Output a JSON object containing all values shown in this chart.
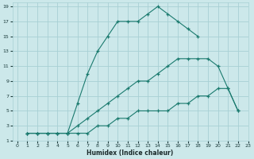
{
  "xlabel": "Humidex (Indice chaleur)",
  "bg_color": "#cce8ea",
  "grid_color": "#a8d0d4",
  "line_color": "#1a7a6e",
  "xlim": [
    -0.5,
    23
  ],
  "ylim": [
    1,
    19.5
  ],
  "xticks": [
    0,
    1,
    2,
    3,
    4,
    5,
    6,
    7,
    8,
    9,
    10,
    11,
    12,
    13,
    14,
    15,
    16,
    17,
    18,
    19,
    20,
    21,
    22,
    23
  ],
  "yticks": [
    1,
    3,
    5,
    7,
    9,
    11,
    13,
    15,
    17,
    19
  ],
  "series": [
    {
      "x": [
        1,
        2,
        3,
        4,
        5,
        6,
        7,
        8,
        9,
        10,
        11,
        12,
        13,
        14,
        15,
        16,
        17,
        18
      ],
      "y": [
        2,
        2,
        2,
        2,
        2,
        6,
        10,
        13,
        15,
        17,
        17,
        17,
        18,
        19,
        18,
        17,
        16,
        15
      ]
    },
    {
      "x": [
        1,
        2,
        3,
        4,
        5,
        6,
        7,
        8,
        9,
        10,
        11,
        12,
        13,
        14,
        15,
        16,
        17,
        18,
        19,
        20,
        21,
        22
      ],
      "y": [
        2,
        2,
        2,
        2,
        2,
        3,
        4,
        5,
        6,
        7,
        8,
        9,
        9,
        10,
        11,
        12,
        12,
        12,
        12,
        11,
        8,
        5
      ]
    },
    {
      "x": [
        1,
        2,
        3,
        4,
        5,
        6,
        7,
        8,
        9,
        10,
        11,
        12,
        13,
        14,
        15,
        16,
        17,
        18,
        19,
        20,
        21,
        22
      ],
      "y": [
        2,
        2,
        2,
        2,
        2,
        2,
        2,
        3,
        3,
        4,
        4,
        5,
        5,
        5,
        5,
        6,
        6,
        7,
        7,
        8,
        8,
        5
      ]
    }
  ]
}
